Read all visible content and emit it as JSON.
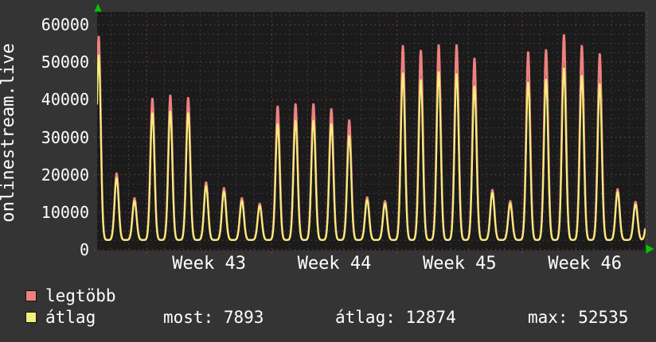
{
  "graph": {
    "vertical_title": "onlinestream.live",
    "legend": [
      {
        "label": "legtöbb",
        "color": "#f08080"
      },
      {
        "label": "átlag",
        "color": "#f3f07a"
      }
    ],
    "stats": [
      {
        "label": "most",
        "value": 7893,
        "text": "most: 7893"
      },
      {
        "label": "átlag",
        "value": 12874,
        "text": "átlag: 12874"
      },
      {
        "label": "max",
        "value": 52535,
        "text": "max: 52535"
      }
    ]
  },
  "chart_data": {
    "type": "line",
    "title": "onlinestream.live",
    "x_axis": {
      "tick_labels": [
        "Week 43",
        "Week 44",
        "Week 45",
        "Week 46"
      ],
      "unit": "time (weeks, daily cycle)",
      "minor_grid_interval": "1 day",
      "major_grid_interval": "1 week"
    },
    "y_axis": {
      "ticks": [
        0,
        10000,
        20000,
        30000,
        40000,
        50000,
        60000
      ],
      "tick_labels": [
        "0",
        "10000",
        "20000",
        "30000",
        "40000",
        "50000",
        "60000"
      ],
      "minor_grid_interval": 2500,
      "ylim": [
        0,
        63400
      ]
    },
    "grid": "dotted; minor gray (daily / 2500), major red (weekly / 10000)",
    "legend_position": "bottom-left",
    "colors": {
      "legtobb_line": "#f08080",
      "atlag_line": "#f3f07a",
      "grid_major": "#ac4646",
      "grid_minor": "#4f4f4f",
      "plot_bg": "#1b1b1b",
      "page_bg": "#343434",
      "text": "#ffffff",
      "axis_arrow": "#00c800"
    },
    "series_peak_days": [
      0,
      1,
      2,
      3,
      4,
      5,
      6,
      7,
      8,
      9,
      10,
      11,
      12,
      13,
      14,
      15,
      16,
      17,
      18,
      19,
      20,
      21,
      22,
      23,
      24,
      25,
      26,
      27,
      28,
      29,
      30,
      30.7
    ],
    "series": [
      {
        "name": "legtöbb",
        "color": "#f08080",
        "daily_peak_values": [
          57000,
          20400,
          13800,
          40400,
          41200,
          40600,
          18000,
          16500,
          13800,
          12300,
          38300,
          38900,
          38900,
          37600,
          34600,
          14000,
          13000,
          54500,
          53200,
          54700,
          54700,
          51100,
          16000,
          13000,
          52800,
          53400,
          57400,
          54500,
          52300,
          16200,
          12800,
          11500
        ]
      },
      {
        "name": "átlag",
        "color": "#f3f07a",
        "daily_peak_values": [
          52000,
          19200,
          13000,
          36500,
          37000,
          36500,
          17000,
          15500,
          13000,
          11700,
          33600,
          34500,
          34500,
          33600,
          30400,
          13300,
          12300,
          47200,
          45400,
          47500,
          47000,
          43700,
          15200,
          12300,
          44700,
          45500,
          48500,
          46500,
          44300,
          15400,
          12100,
          10800
        ]
      }
    ],
    "shape": {
      "baseline": 2600,
      "peak_sigma_days": 0.16
    },
    "stats": {
      "most": 7893,
      "atlag": 12874,
      "max": 52535
    }
  }
}
